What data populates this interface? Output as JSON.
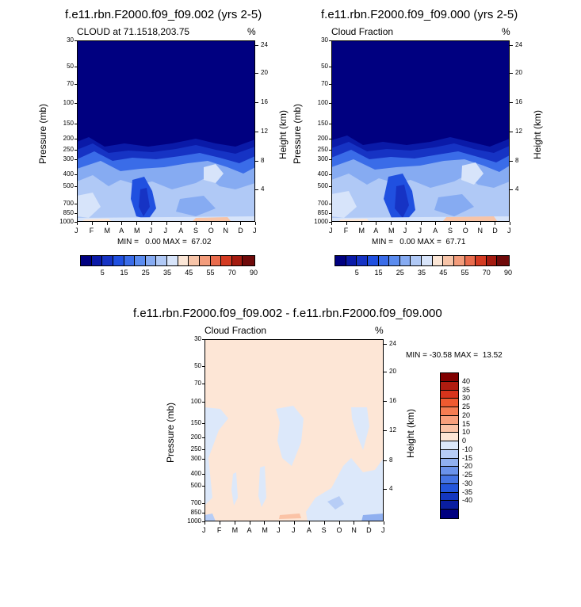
{
  "panel1": {
    "title": "f.e11.rbn.F2000.f09_f09.002 (yrs 2-5)",
    "left_label": "CLOUD at 71.1518,203.75",
    "units": "%",
    "ylabel": "Pressure (mb)",
    "y2label": "Height (km)",
    "minmax": "MIN =   0.00 MAX =  67.02"
  },
  "panel2": {
    "title": "f.e11.rbn.F2000.f09_f09.000 (yrs 2-5)",
    "left_label": "Cloud Fraction",
    "units": "%",
    "ylabel": "Pressure (mb)",
    "y2label": "Height (km)",
    "minmax": "MIN =   0.00 MAX =  67.71"
  },
  "panel3": {
    "title": "f.e11.rbn.F2000.f09_f09.002 - f.e11.rbn.F2000.f09_f09.000",
    "left_label": "Cloud Fraction",
    "units": "%",
    "ylabel": "Pressure (mb)",
    "y2label": "Height (km)",
    "minmax": "MIN = -30.58 MAX =  13.52"
  },
  "axes": {
    "months": [
      "J",
      "F",
      "M",
      "A",
      "M",
      "J",
      "J",
      "A",
      "S",
      "O",
      "N",
      "D",
      "J"
    ],
    "pressure_ticks": [
      "30",
      "50",
      "70",
      "100",
      "150",
      "200",
      "250",
      "300",
      "400",
      "500",
      "700",
      "850",
      "1000"
    ],
    "pressure_ticks_small": [
      "30",
      "50",
      "70",
      "100",
      "150",
      "200",
      "250",
      "300",
      "400",
      "500",
      "700",
      "850",
      "1000"
    ],
    "height_ticks": [
      "24",
      "20",
      "16",
      "12",
      "8",
      "4"
    ]
  },
  "colorbar_abs": {
    "labels": [
      "5",
      "15",
      "25",
      "35",
      "45",
      "55",
      "70",
      "90"
    ],
    "colors": [
      "#000080",
      "#0a1aa8",
      "#1633c4",
      "#2050e0",
      "#3a6ce8",
      "#5b8cef",
      "#86abf2",
      "#b0c9f6",
      "#d7e4fa",
      "#fbe6d6",
      "#f7c4a8",
      "#f39c7b",
      "#e96c4d",
      "#d43b22",
      "#a41b10",
      "#6f0a0a"
    ]
  },
  "colorbar_diff": {
    "labels": [
      "40",
      "35",
      "30",
      "25",
      "20",
      "15",
      "10",
      "0",
      "-10",
      "-15",
      "-20",
      "-25",
      "-30",
      "-35",
      "-40"
    ],
    "colors": [
      "#800000",
      "#b01c10",
      "#d8341c",
      "#f05a30",
      "#f57d52",
      "#f8a07c",
      "#fbc3a6",
      "#fde6d6",
      "#dce8fa",
      "#b7cdf6",
      "#90b0f0",
      "#6a92ea",
      "#4574e4",
      "#2456dc",
      "#1437c0",
      "#0a1ea0",
      "#000080"
    ]
  },
  "chart_data": [
    {
      "type": "heatmap",
      "title": "f.e11.rbn.F2000.f09_f09.002 (yrs 2-5)",
      "subtitle": "CLOUD at 71.1518,203.75",
      "xlabel": "",
      "ylabel": "Pressure (mb)",
      "y2label": "Height (km)",
      "units": "%",
      "x": [
        "J",
        "F",
        "M",
        "A",
        "M",
        "J",
        "J",
        "A",
        "S",
        "O",
        "N",
        "D",
        "J"
      ],
      "ylim": [
        1000,
        30
      ],
      "min": 0.0,
      "max": 67.02
    },
    {
      "type": "heatmap",
      "title": "f.e11.rbn.F2000.f09_f09.000 (yrs 2-5)",
      "subtitle": "Cloud Fraction",
      "xlabel": "",
      "ylabel": "Pressure (mb)",
      "y2label": "Height (km)",
      "units": "%",
      "x": [
        "J",
        "F",
        "M",
        "A",
        "M",
        "J",
        "J",
        "A",
        "S",
        "O",
        "N",
        "D",
        "J"
      ],
      "ylim": [
        1000,
        30
      ],
      "min": 0.0,
      "max": 67.71
    },
    {
      "type": "heatmap",
      "title": "f.e11.rbn.F2000.f09_f09.002 - f.e11.rbn.F2000.f09_f09.000",
      "subtitle": "Cloud Fraction",
      "xlabel": "",
      "ylabel": "Pressure (mb)",
      "y2label": "Height (km)",
      "units": "%",
      "x": [
        "J",
        "F",
        "M",
        "A",
        "M",
        "J",
        "J",
        "A",
        "S",
        "O",
        "N",
        "D",
        "J"
      ],
      "ylim": [
        1000,
        30
      ],
      "min": -30.58,
      "max": 13.52
    }
  ]
}
